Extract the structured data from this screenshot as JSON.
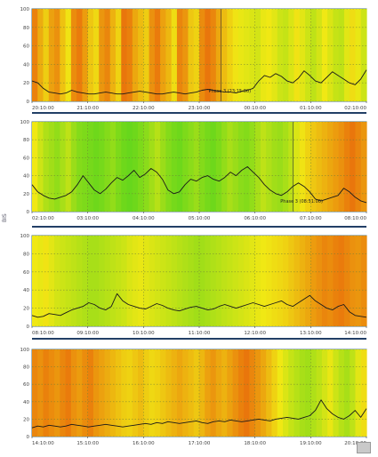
{
  "y_axis_label": "BIS",
  "corner_badge": "",
  "chart_data": [
    {
      "type": "line",
      "title": "",
      "ylim": [
        0,
        100
      ],
      "yticks": [
        "0",
        "20",
        "40",
        "60",
        "80",
        "100"
      ],
      "xticks": [
        "20:10:00",
        "21:10:00",
        "22:10:00",
        "23:10:00",
        "00:10:00",
        "01:10:00",
        "02:10:00"
      ],
      "annotation": {
        "text": "Phase 3 (23:15:00)",
        "x": 0.565
      },
      "background_bands": [
        88,
        72,
        60,
        76,
        82,
        64,
        52,
        84,
        90,
        78,
        62,
        56,
        80,
        86,
        70,
        58,
        92,
        88,
        74,
        66,
        60,
        82,
        90,
        76,
        68,
        54,
        86,
        80,
        62,
        58,
        84,
        92,
        86,
        74,
        66,
        58,
        52,
        48,
        46,
        44,
        42,
        48,
        50,
        46,
        40,
        38,
        44,
        52,
        46,
        40,
        36,
        42,
        50,
        44,
        38,
        36,
        46,
        54,
        48,
        40
      ],
      "series": [
        {
          "values": [
            22,
            20,
            14,
            10,
            9,
            8,
            9,
            12,
            10,
            9,
            8,
            8,
            9,
            10,
            9,
            8,
            8,
            9,
            10,
            11,
            10,
            9,
            8,
            8,
            9,
            10,
            9,
            8,
            9,
            10,
            12,
            13,
            12,
            11,
            10,
            10,
            9,
            11,
            12,
            14,
            22,
            28,
            26,
            30,
            27,
            22,
            20,
            25,
            33,
            28,
            22,
            20,
            26,
            32,
            28,
            24,
            20,
            18,
            24,
            34
          ]
        }
      ]
    },
    {
      "type": "line",
      "title": "",
      "ylim": [
        0,
        100
      ],
      "yticks": [
        "0",
        "20",
        "40",
        "60",
        "80",
        "100"
      ],
      "xticks": [
        "02:10:00",
        "03:10:00",
        "04:10:00",
        "05:10:00",
        "06:10:00",
        "07:10:00",
        "08:10:00"
      ],
      "annotation": {
        "text": "Phase 3 (08:51:00)",
        "x": 0.78
      },
      "background_bands": [
        50,
        40,
        32,
        28,
        24,
        30,
        36,
        26,
        20,
        18,
        16,
        14,
        16,
        20,
        24,
        18,
        14,
        12,
        14,
        18,
        22,
        28,
        34,
        26,
        20,
        16,
        14,
        18,
        22,
        26,
        20,
        16,
        14,
        18,
        24,
        30,
        26,
        22,
        20,
        24,
        30,
        36,
        32,
        28,
        26,
        30,
        36,
        44,
        52,
        58,
        62,
        66,
        70,
        74,
        78,
        82,
        88,
        92,
        86,
        80
      ],
      "series": [
        {
          "values": [
            30,
            22,
            18,
            15,
            14,
            16,
            18,
            22,
            30,
            40,
            32,
            24,
            20,
            25,
            32,
            38,
            35,
            40,
            46,
            38,
            42,
            48,
            44,
            36,
            24,
            20,
            22,
            30,
            36,
            34,
            38,
            40,
            36,
            34,
            38,
            44,
            40,
            46,
            50,
            44,
            38,
            30,
            24,
            20,
            18,
            22,
            28,
            32,
            28,
            22,
            14,
            12,
            14,
            16,
            18,
            26,
            22,
            16,
            12,
            10
          ]
        }
      ]
    },
    {
      "type": "line",
      "title": "",
      "ylim": [
        0,
        100
      ],
      "yticks": [
        "0",
        "20",
        "40",
        "60",
        "80",
        "100"
      ],
      "xticks": [
        "08:10:00",
        "09:10:00",
        "10:10:00",
        "11:10:00",
        "12:10:00",
        "13:10:00",
        "14:10:00"
      ],
      "annotation": {
        "text": "",
        "x": 0
      },
      "background_bands": [
        50,
        48,
        52,
        46,
        42,
        40,
        38,
        36,
        34,
        32,
        30,
        30,
        32,
        34,
        36,
        38,
        40,
        44,
        46,
        48,
        46,
        44,
        42,
        40,
        38,
        36,
        34,
        32,
        30,
        28,
        28,
        30,
        32,
        34,
        36,
        38,
        40,
        42,
        44,
        46,
        48,
        50,
        52,
        54,
        56,
        58,
        62,
        66,
        70,
        74,
        78,
        82,
        86,
        84,
        88,
        90,
        86,
        82,
        80,
        84
      ],
      "series": [
        {
          "values": [
            12,
            10,
            11,
            14,
            13,
            12,
            15,
            18,
            20,
            22,
            26,
            24,
            20,
            18,
            22,
            36,
            28,
            24,
            22,
            20,
            19,
            22,
            25,
            23,
            20,
            18,
            17,
            19,
            21,
            22,
            20,
            18,
            19,
            22,
            24,
            22,
            20,
            22,
            24,
            26,
            24,
            22,
            24,
            26,
            28,
            24,
            22,
            26,
            30,
            34,
            28,
            24,
            20,
            18,
            22,
            24,
            16,
            12,
            11,
            10
          ]
        }
      ]
    },
    {
      "type": "line",
      "title": "",
      "ylim": [
        0,
        100
      ],
      "yticks": [
        "0",
        "20",
        "40",
        "60",
        "80",
        "100"
      ],
      "xticks": [
        "14:10:00",
        "15:10:00",
        "16:10:00",
        "17:10:00",
        "18:10:00",
        "19:10:00",
        "20:10:00"
      ],
      "annotation": {
        "text": "",
        "x": 0
      },
      "background_bands": [
        86,
        82,
        88,
        84,
        80,
        86,
        90,
        82,
        78,
        84,
        88,
        80,
        76,
        72,
        68,
        64,
        60,
        58,
        62,
        66,
        60,
        56,
        58,
        62,
        66,
        70,
        74,
        70,
        66,
        62,
        68,
        76,
        80,
        74,
        70,
        76,
        82,
        88,
        92,
        86,
        80,
        74,
        66,
        58,
        50,
        44,
        38,
        34,
        30,
        28,
        32,
        36,
        42,
        48,
        40,
        34,
        30,
        36,
        46,
        54
      ],
      "series": [
        {
          "values": [
            10,
            12,
            11,
            13,
            12,
            11,
            12,
            14,
            13,
            12,
            11,
            12,
            13,
            14,
            13,
            12,
            11,
            12,
            13,
            14,
            15,
            14,
            16,
            15,
            17,
            16,
            15,
            16,
            17,
            18,
            16,
            15,
            17,
            18,
            17,
            19,
            18,
            17,
            18,
            19,
            20,
            19,
            18,
            20,
            21,
            22,
            21,
            20,
            22,
            24,
            30,
            42,
            32,
            26,
            22,
            20,
            24,
            30,
            22,
            32
          ]
        }
      ]
    }
  ]
}
